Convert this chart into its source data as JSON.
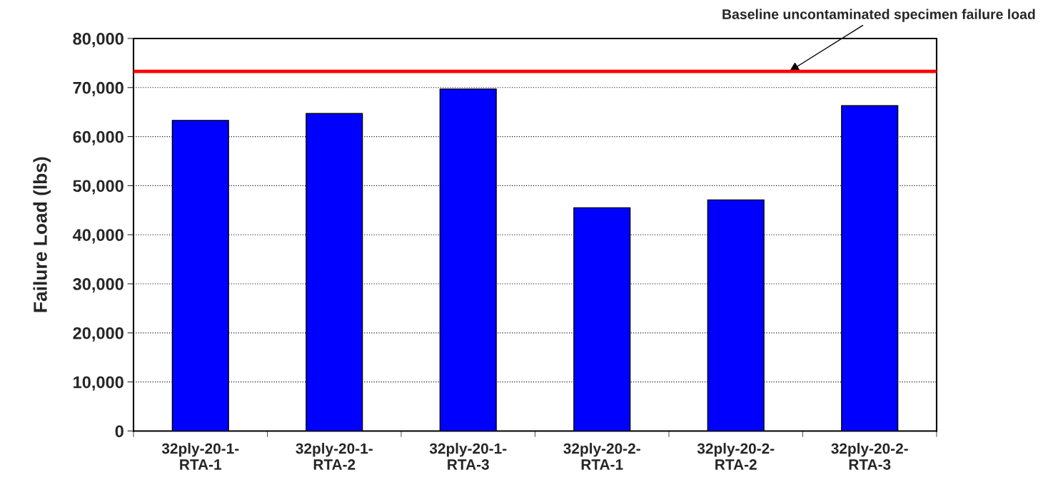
{
  "chart_data": {
    "type": "bar",
    "ylabel": "Failure Load (lbs)",
    "categories": [
      "32ply-20-1-\nRTA-1",
      "32ply-20-1-\nRTA-2",
      "32ply-20-1-\nRTA-3",
      "32ply-20-2-\nRTA-1",
      "32ply-20-2-\nRTA-2",
      "32ply-20-2-\nRTA-3"
    ],
    "values": [
      63300,
      64700,
      69700,
      45500,
      47100,
      66300
    ],
    "color": "#0000ff",
    "ylim": [
      0,
      80000
    ],
    "yticks": [
      {
        "value": 0,
        "label": "0"
      },
      {
        "value": 10000,
        "label": "10,000"
      },
      {
        "value": 20000,
        "label": "20,000"
      },
      {
        "value": 30000,
        "label": "30,000"
      },
      {
        "value": 40000,
        "label": "40,000"
      },
      {
        "value": 50000,
        "label": "50,000"
      },
      {
        "value": 60000,
        "label": "60,000"
      },
      {
        "value": 70000,
        "label": "70,000"
      },
      {
        "value": 80000,
        "label": "80,000"
      }
    ],
    "grid": "y",
    "ref_lines": [
      {
        "axis": "y",
        "value": 73300,
        "label": "Baseline uncontaminated specimen failure load",
        "color": "#ff0000",
        "line_style": "solid"
      }
    ]
  }
}
